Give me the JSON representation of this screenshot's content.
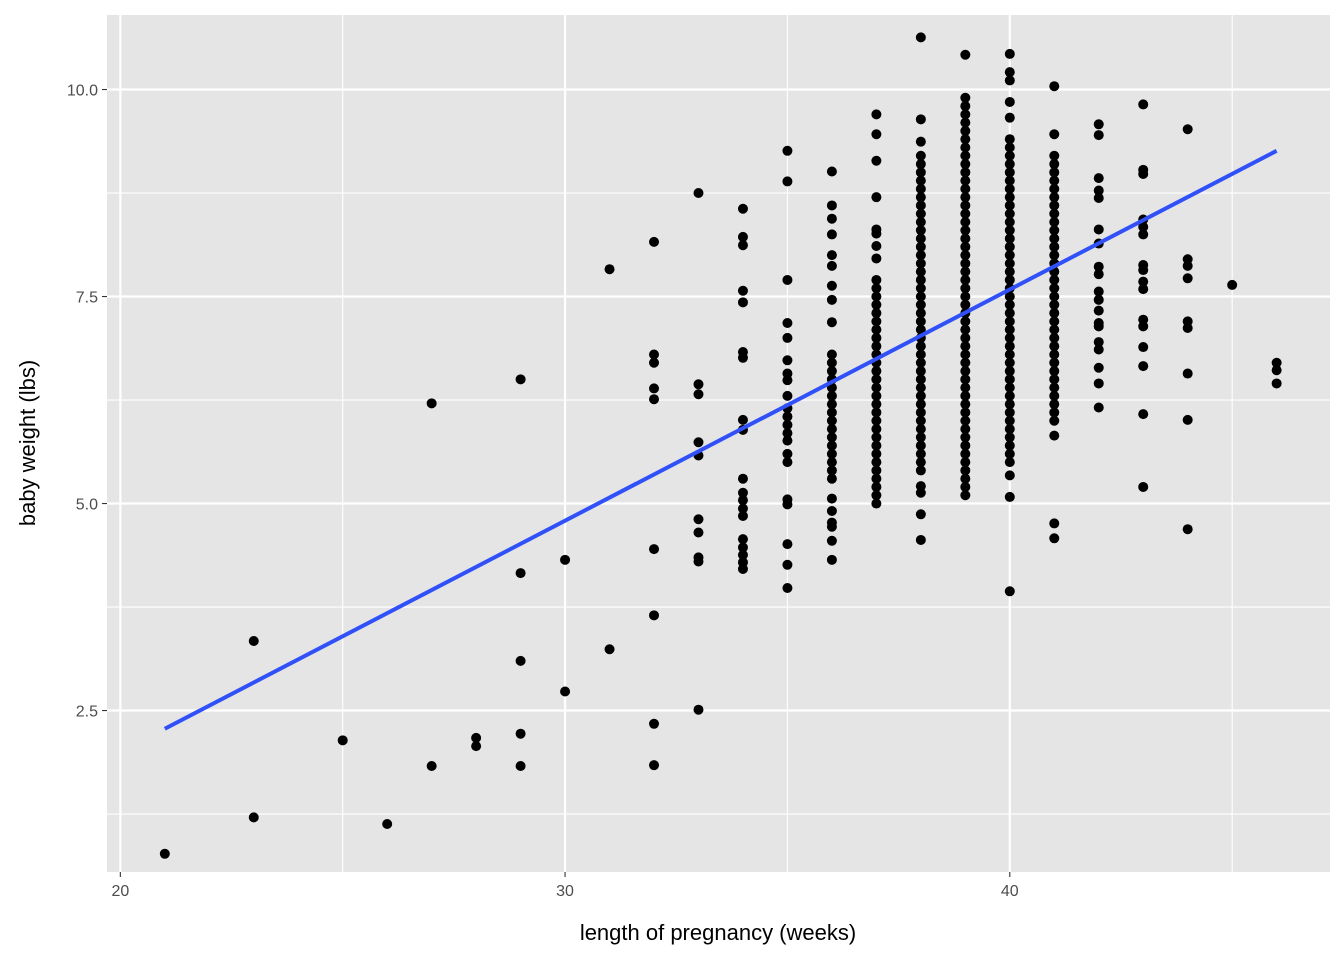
{
  "chart_data": {
    "type": "scatter",
    "title": "",
    "xlabel": "length of pregnancy (weeks)",
    "ylabel": "baby weight (lbs)",
    "xlim": [
      19.7,
      47.2
    ],
    "ylim": [
      0.55,
      10.9
    ],
    "x_ticks": [
      {
        "value": 20,
        "label": "20"
      },
      {
        "value": 30,
        "label": "30"
      },
      {
        "value": 40,
        "label": "40"
      }
    ],
    "y_ticks": [
      {
        "value": 2.5,
        "label": "2.5"
      },
      {
        "value": 5,
        "label": "5.0"
      },
      {
        "value": 7.5,
        "label": "7.5"
      },
      {
        "value": 10,
        "label": "10.0"
      }
    ],
    "grid": true,
    "colors": {
      "panel": "#e5e5e5",
      "grid": "#ffffff",
      "points": "#000000",
      "fit_line": "#3050f8"
    },
    "fit_line": {
      "x": [
        21,
        46
      ],
      "y": [
        2.28,
        9.26
      ]
    },
    "points": [
      {
        "x": 21,
        "y": [
          0.77
        ]
      },
      {
        "x": 23,
        "y": [
          3.34,
          1.21
        ]
      },
      {
        "x": 25,
        "y": [
          2.14
        ]
      },
      {
        "x": 26,
        "y": [
          1.13
        ]
      },
      {
        "x": 27,
        "y": [
          6.21,
          1.83
        ]
      },
      {
        "x": 28,
        "y": [
          2.17,
          2.07
        ]
      },
      {
        "x": 29,
        "y": [
          6.5,
          4.16,
          3.1,
          2.22,
          1.83
        ]
      },
      {
        "x": 30,
        "y": [
          4.32,
          2.73
        ]
      },
      {
        "x": 31,
        "y": [
          7.83,
          3.24
        ]
      },
      {
        "x": 32,
        "y": [
          8.16,
          6.8,
          6.7,
          6.39,
          6.26,
          4.45,
          3.65,
          2.34,
          1.84
        ]
      },
      {
        "x": 33,
        "y": [
          8.75,
          6.44,
          6.32,
          5.74,
          5.58,
          4.81,
          4.65,
          4.35,
          4.3,
          2.51
        ]
      },
      {
        "x": 34,
        "y": [
          8.56,
          8.22,
          8.12,
          7.57,
          7.43,
          6.83,
          6.76,
          6.01,
          5.89,
          5.3,
          5.13,
          5.04,
          4.94,
          4.85,
          4.57,
          4.47,
          4.38,
          4.29,
          4.21
        ]
      },
      {
        "x": 35,
        "y": [
          9.26,
          8.89,
          7.7,
          7.18,
          7.0,
          6.73,
          6.57,
          6.49,
          6.3,
          6.15,
          6.05,
          5.95,
          5.85,
          5.76,
          5.6,
          5.5,
          5.05,
          4.99,
          4.51,
          4.26,
          3.98
        ]
      },
      {
        "x": 36,
        "y": [
          9.01,
          8.6,
          8.44,
          8.25,
          8.0,
          7.87,
          7.63,
          7.46,
          7.19,
          6.8,
          6.7,
          6.6,
          6.5,
          6.4,
          6.3,
          6.2,
          6.1,
          6.0,
          5.9,
          5.8,
          5.7,
          5.6,
          5.5,
          5.4,
          5.3,
          5.06,
          4.91,
          4.77,
          4.72,
          4.55,
          4.32
        ]
      },
      {
        "x": 37,
        "y": [
          9.7,
          9.46,
          9.14,
          8.7,
          8.31,
          8.26,
          8.11,
          7.96,
          7.7,
          7.6,
          7.5,
          7.4,
          7.3,
          7.2,
          7.1,
          7.0,
          6.9,
          6.8,
          6.7,
          6.6,
          6.5,
          6.4,
          6.3,
          6.2,
          6.1,
          6.0,
          5.9,
          5.8,
          5.7,
          5.6,
          5.5,
          5.4,
          5.3,
          5.2,
          5.1,
          5.0
        ]
      },
      {
        "x": 38,
        "y": [
          10.63,
          9.64,
          9.37,
          9.2,
          9.1,
          9.0,
          8.9,
          8.8,
          8.7,
          8.6,
          8.5,
          8.4,
          8.3,
          8.2,
          8.1,
          8.0,
          7.9,
          7.8,
          7.7,
          7.6,
          7.5,
          7.4,
          7.3,
          7.2,
          7.1,
          7.0,
          6.9,
          6.8,
          6.7,
          6.6,
          6.5,
          6.4,
          6.3,
          6.2,
          6.1,
          6.0,
          5.9,
          5.8,
          5.7,
          5.6,
          5.5,
          5.4,
          5.21,
          5.13,
          4.87,
          4.56
        ]
      },
      {
        "x": 39,
        "y": [
          10.42,
          9.9,
          9.8,
          9.7,
          9.6,
          9.5,
          9.4,
          9.3,
          9.2,
          9.1,
          9.0,
          8.9,
          8.8,
          8.7,
          8.6,
          8.5,
          8.4,
          8.3,
          8.2,
          8.1,
          8.0,
          7.9,
          7.8,
          7.7,
          7.6,
          7.5,
          7.4,
          7.3,
          7.2,
          7.1,
          7.0,
          6.9,
          6.8,
          6.7,
          6.6,
          6.5,
          6.4,
          6.3,
          6.2,
          6.1,
          6.0,
          5.9,
          5.8,
          5.7,
          5.6,
          5.5,
          5.4,
          5.3,
          5.2,
          5.1
        ]
      },
      {
        "x": 40,
        "y": [
          10.43,
          10.21,
          10.11,
          9.85,
          9.66,
          9.4,
          9.3,
          9.2,
          9.1,
          9.0,
          8.9,
          8.8,
          8.7,
          8.6,
          8.5,
          8.4,
          8.3,
          8.2,
          8.1,
          8.0,
          7.9,
          7.8,
          7.7,
          7.6,
          7.5,
          7.4,
          7.3,
          7.2,
          7.1,
          7.0,
          6.9,
          6.8,
          6.7,
          6.6,
          6.5,
          6.4,
          6.3,
          6.2,
          6.1,
          6.0,
          5.9,
          5.8,
          5.7,
          5.6,
          5.5,
          5.34,
          5.08,
          3.94
        ]
      },
      {
        "x": 41,
        "y": [
          10.04,
          9.46,
          9.2,
          9.1,
          9.0,
          8.9,
          8.8,
          8.7,
          8.6,
          8.5,
          8.4,
          8.3,
          8.2,
          8.1,
          8.0,
          7.9,
          7.8,
          7.7,
          7.6,
          7.5,
          7.4,
          7.3,
          7.2,
          7.1,
          7.0,
          6.9,
          6.8,
          6.7,
          6.6,
          6.5,
          6.4,
          6.3,
          6.2,
          6.1,
          6.0,
          5.82,
          4.76,
          4.58
        ]
      },
      {
        "x": 42,
        "y": [
          9.58,
          9.45,
          8.93,
          8.78,
          8.69,
          8.31,
          8.14,
          7.86,
          7.77,
          7.56,
          7.46,
          7.33,
          7.18,
          7.14,
          6.95,
          6.86,
          6.64,
          6.45,
          6.16
        ]
      },
      {
        "x": 43,
        "y": [
          9.82,
          9.03,
          8.98,
          8.43,
          8.34,
          8.25,
          7.88,
          7.82,
          7.68,
          7.59,
          7.22,
          7.14,
          6.89,
          6.66,
          6.08,
          5.2
        ]
      },
      {
        "x": 44,
        "y": [
          9.52,
          7.95,
          7.87,
          7.72,
          7.2,
          7.12,
          6.57,
          6.01,
          4.69
        ]
      },
      {
        "x": 45,
        "y": [
          7.64
        ]
      },
      {
        "x": 46,
        "y": [
          6.7,
          6.61,
          6.45
        ]
      }
    ]
  }
}
